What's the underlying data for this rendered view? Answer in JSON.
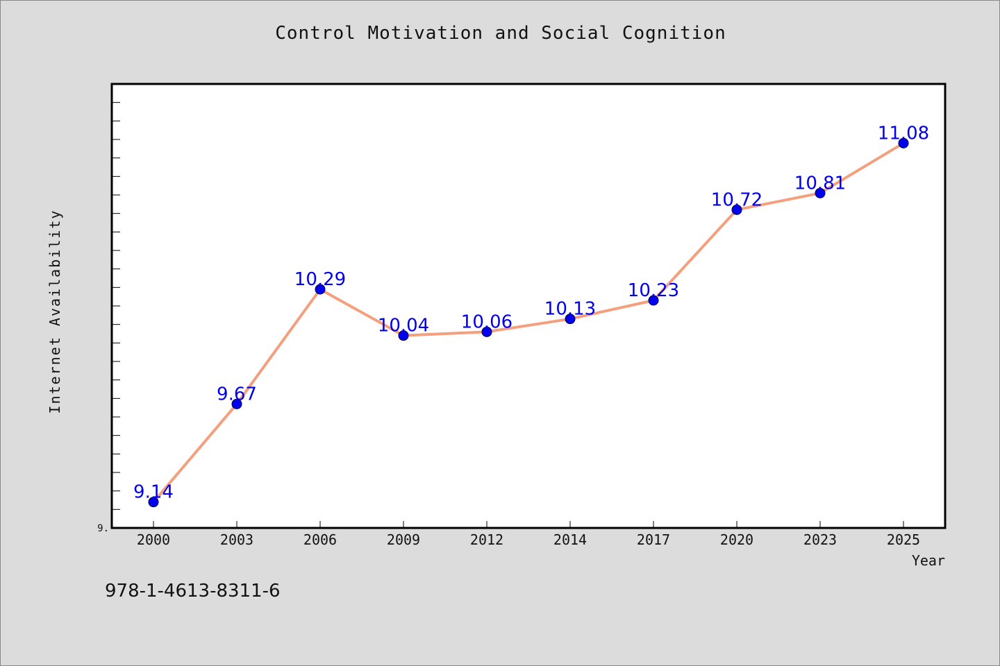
{
  "chart_data": {
    "type": "line",
    "title": "Control Motivation and Social Cognition",
    "xlabel": "Year",
    "ylabel": "Internet Availability",
    "categories": [
      "2000",
      "2003",
      "2006",
      "2009",
      "2012",
      "2014",
      "2017",
      "2020",
      "2023",
      "2025"
    ],
    "series": [
      {
        "values": [
          9.14,
          9.67,
          10.29,
          10.04,
          10.06,
          10.13,
          10.23,
          10.72,
          10.81,
          11.08
        ],
        "labels": [
          "9.14",
          "9.67",
          "10.29",
          "10.04",
          "10.06",
          "10.13",
          "10.23",
          "10.72",
          "10.81",
          "11.08"
        ],
        "line_color": "#f4a07e",
        "marker_color": "#0000ee",
        "label_color": "#0000ee"
      }
    ],
    "ylim": [
      9.0,
      11.4
    ],
    "y_tick_label": "9.",
    "y_minor_ticks": 24,
    "grid": false,
    "legend": "none"
  },
  "footer": {
    "note": "978-1-4613-8311-6"
  },
  "colors": {
    "background": "#dcdcdc",
    "plot_background": "#ffffff",
    "axis": "#000000"
  }
}
